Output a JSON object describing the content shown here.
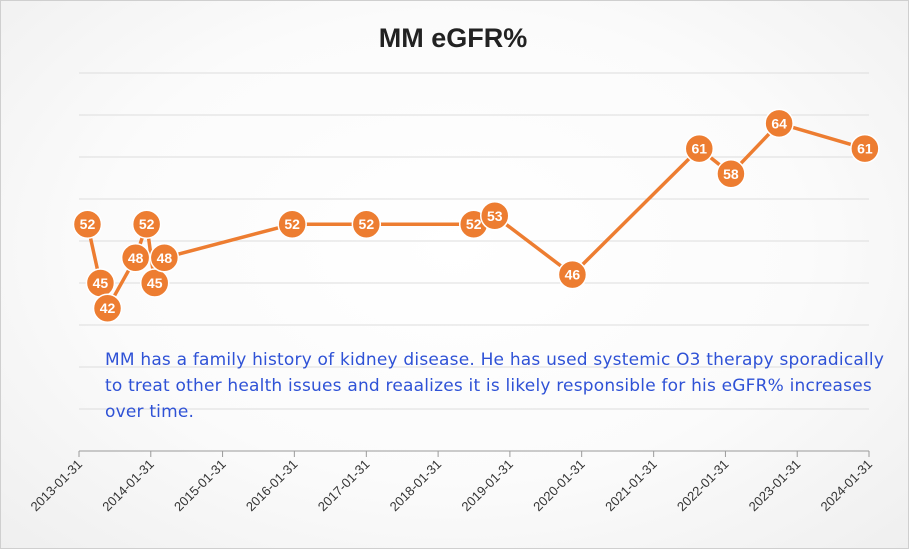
{
  "chart_data": {
    "type": "line",
    "title": "MM eGFR%",
    "xlabel": "",
    "ylabel": "",
    "x_tick_labels": [
      "2013-01-31",
      "2014-01-31",
      "2015-01-31",
      "2016-01-31",
      "2017-01-31",
      "2018-01-31",
      "2019-01-31",
      "2020-01-31",
      "2021-01-31",
      "2022-01-31",
      "2023-01-31",
      "2024-01-31"
    ],
    "grid": true,
    "legend": "none",
    "series": [
      {
        "color": "#ed7d31",
        "points": [
          {
            "x": "2013-03-15",
            "y": 52
          },
          {
            "x": "2013-05-20",
            "y": 45
          },
          {
            "x": "2013-06-25",
            "y": 42
          },
          {
            "x": "2013-11-15",
            "y": 48
          },
          {
            "x": "2014-01-10",
            "y": 52
          },
          {
            "x": "2014-02-20",
            "y": 45
          },
          {
            "x": "2014-04-10",
            "y": 48
          },
          {
            "x": "2016-01-20",
            "y": 52
          },
          {
            "x": "2017-01-31",
            "y": 52
          },
          {
            "x": "2018-07-31",
            "y": 52
          },
          {
            "x": "2018-11-15",
            "y": 53
          },
          {
            "x": "2019-12-15",
            "y": 46
          },
          {
            "x": "2021-09-20",
            "y": 61
          },
          {
            "x": "2022-02-28",
            "y": 58
          },
          {
            "x": "2022-10-31",
            "y": 64
          },
          {
            "x": "2024-01-10",
            "y": 61
          }
        ]
      }
    ]
  },
  "annotation": "MM has a family history of kidney disease. He has used systemic O3 therapy sporadically to treat other health issues and reaalizes it is likely responsible for his eGFR% increases over time."
}
